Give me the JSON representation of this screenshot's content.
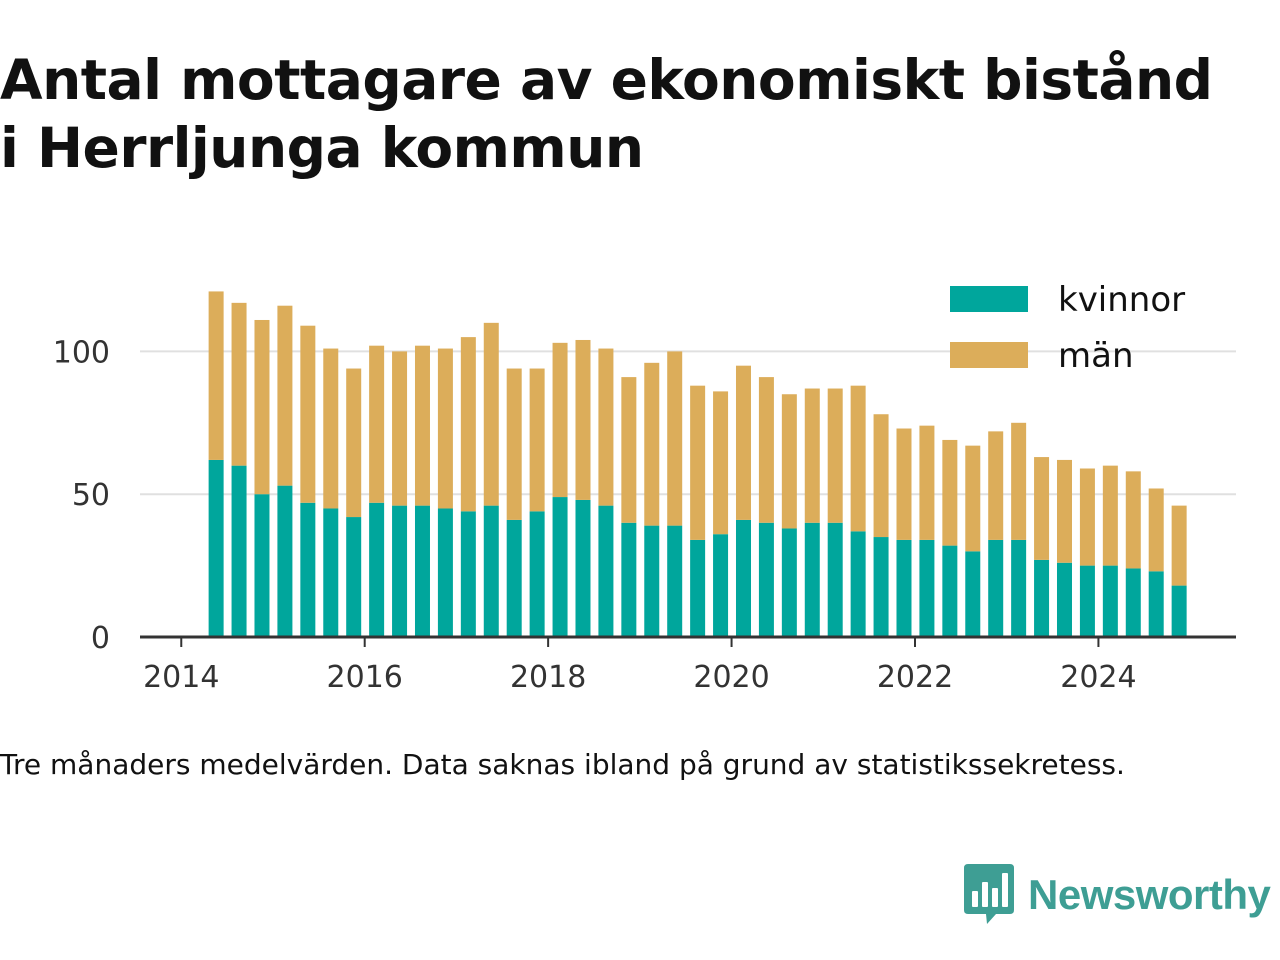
{
  "title_lines": [
    "Antal mottagare av ekonomiskt bistånd",
    "i Herrljunga kommun"
  ],
  "caption": "Tre månaders medelvärden. Data saknas ibland på grund av statistikssekretess.",
  "brand": {
    "name": "Newsworthy",
    "icon": "newsworthy-logo-icon",
    "color": "#3e9e94"
  },
  "chart_data": {
    "type": "bar",
    "stacked": true,
    "x_axis": {
      "range": [
        2013.55,
        2025.5
      ],
      "ticks": [
        2014,
        2016,
        2018,
        2020,
        2022,
        2024
      ]
    },
    "y_axis": {
      "range": [
        0,
        125
      ],
      "ticks": [
        0,
        50,
        100
      ]
    },
    "grid": true,
    "legend_position": "top-right",
    "x": [
      2014.38,
      2014.63,
      2014.88,
      2015.13,
      2015.38,
      2015.63,
      2015.88,
      2016.13,
      2016.38,
      2016.63,
      2016.88,
      2017.13,
      2017.38,
      2017.63,
      2017.88,
      2018.13,
      2018.38,
      2018.63,
      2018.88,
      2019.13,
      2019.38,
      2019.63,
      2019.88,
      2020.13,
      2020.38,
      2020.63,
      2020.88,
      2021.13,
      2021.38,
      2021.63,
      2021.88,
      2022.13,
      2022.38,
      2022.63,
      2022.88,
      2023.13,
      2023.38,
      2023.63,
      2023.88,
      2024.13,
      2024.38,
      2024.63,
      2024.88
    ],
    "series": [
      {
        "name": "kvinnor",
        "color": "#00a69c",
        "values": [
          62,
          60,
          50,
          53,
          47,
          45,
          42,
          47,
          46,
          46,
          45,
          44,
          46,
          41,
          44,
          49,
          48,
          46,
          40,
          39,
          39,
          34,
          36,
          41,
          40,
          38,
          40,
          40,
          37,
          35,
          34,
          34,
          32,
          30,
          34,
          34,
          27,
          26,
          25,
          25,
          24,
          23,
          18
        ]
      },
      {
        "name": "män",
        "color": "#dcad5a",
        "values": [
          59,
          57,
          61,
          63,
          62,
          56,
          52,
          55,
          54,
          56,
          56,
          61,
          64,
          53,
          50,
          54,
          56,
          55,
          51,
          57,
          61,
          54,
          50,
          54,
          51,
          47,
          47,
          47,
          51,
          43,
          39,
          40,
          37,
          37,
          38,
          41,
          36,
          36,
          34,
          35,
          34,
          29,
          28
        ]
      }
    ]
  }
}
